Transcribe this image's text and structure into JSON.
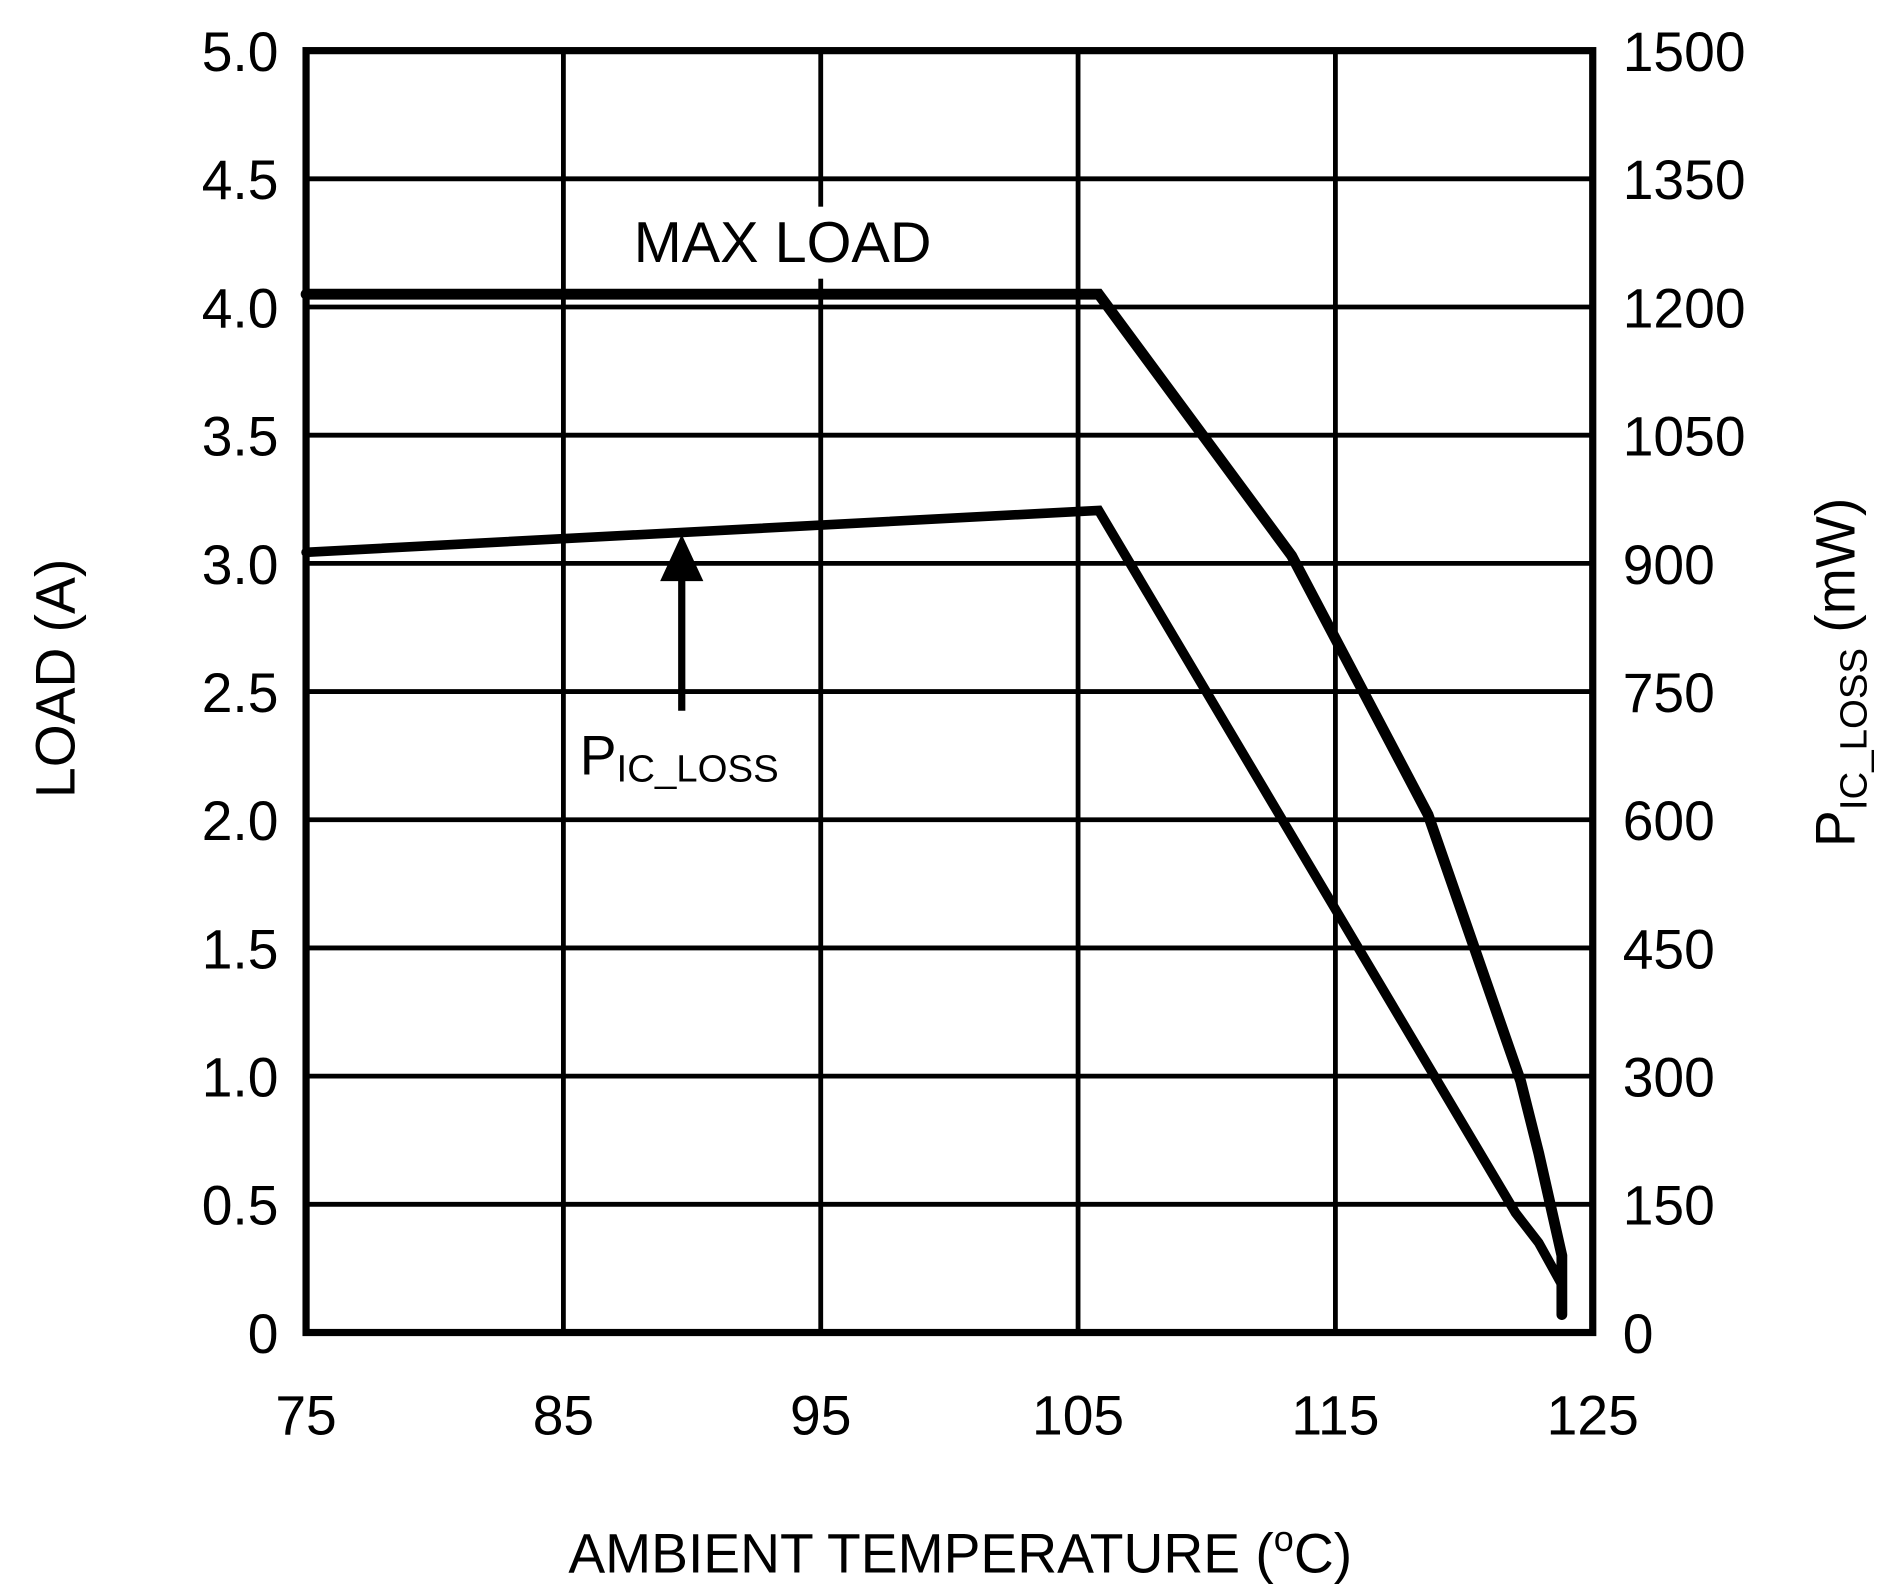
{
  "chart_data": {
    "type": "line",
    "title": "",
    "xlabel": "AMBIENT TEMPERATURE (",
    "xlabel_sup": "o",
    "xlabel_end": "C)",
    "ylabel": "LOAD (A)",
    "y2label_main": "P",
    "y2label_sub": "IC_LOSS",
    "y2label_end": " (mW)",
    "xlim": [
      75,
      125
    ],
    "ylim": [
      0,
      5
    ],
    "y2lim": [
      0,
      1500
    ],
    "grid": true,
    "xticks": [
      "75",
      "85",
      "95",
      "105",
      "115",
      "125"
    ],
    "yticks": [
      "0",
      "0.5",
      "1.0",
      "1.5",
      "2.0",
      "2.5",
      "3.0",
      "3.5",
      "4.0",
      "4.5",
      "5.0"
    ],
    "y2ticks": [
      "0",
      "150",
      "300",
      "450",
      "600",
      "750",
      "900",
      "1050",
      "1200",
      "1350",
      "1500"
    ],
    "series": [
      {
        "axis": "left",
        "x": [
          75,
          105.8,
          113.3,
          118.6,
          122.2,
          122.9,
          123.8,
          123.8
        ],
        "y": [
          4.05,
          4.05,
          3.03,
          2.02,
          0.98,
          0.7,
          0.3,
          0.07
        ]
      },
      {
        "axis": "right",
        "x": [
          75,
          105.8,
          122.0,
          122.9,
          123.8,
          123.8
        ],
        "y": [
          913,
          962,
          140,
          105,
          56,
          21
        ]
      }
    ],
    "annotations": {
      "max_load": "MAX LOAD",
      "ploss_main": "P",
      "ploss_sub": "IC_LOSS"
    },
    "colors": {
      "line": "#000000",
      "grid": "#000000"
    }
  }
}
